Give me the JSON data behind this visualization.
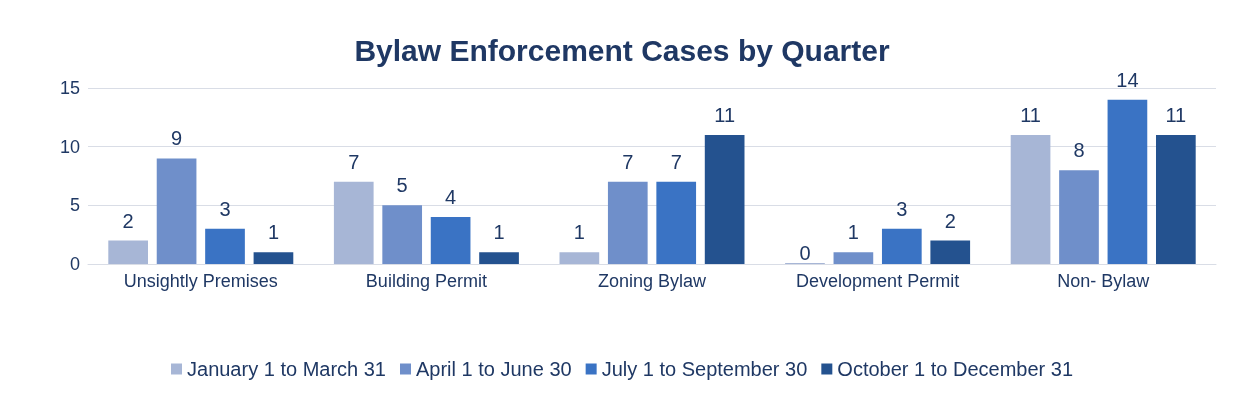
{
  "chart_data": {
    "type": "bar",
    "title": "Bylaw Enforcement Cases by Quarter",
    "categories": [
      "Unsightly Premises",
      "Building Permit",
      "Zoning Bylaw",
      "Development Permit",
      "Non- Bylaw"
    ],
    "series": [
      {
        "name": "January 1 to March 31",
        "color": "#a7b6d6",
        "values": [
          2,
          7,
          1,
          0,
          11
        ]
      },
      {
        "name": "April 1 to June 30",
        "color": "#6f8fca",
        "values": [
          9,
          5,
          7,
          1,
          8
        ]
      },
      {
        "name": "July 1 to September 30",
        "color": "#3a73c4",
        "values": [
          3,
          4,
          7,
          3,
          14
        ]
      },
      {
        "name": "October 1 to December 31",
        "color": "#24528f",
        "values": [
          1,
          1,
          11,
          2,
          11
        ]
      }
    ],
    "ylim": [
      0,
      15
    ],
    "yticks": [
      0,
      5,
      10,
      15
    ],
    "grid": "y",
    "legend": "bottom",
    "data_labels": true
  }
}
